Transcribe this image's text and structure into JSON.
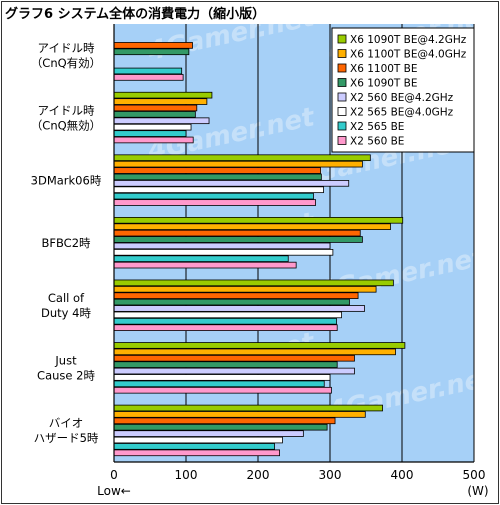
{
  "chart_data": {
    "type": "bar",
    "orientation": "horizontal",
    "title": "グラフ6 システム全体の消費電力（縮小版）",
    "unit": "(W)",
    "x_note": "Low←",
    "xlim": [
      0,
      500
    ],
    "x_ticks": [
      "0",
      "100",
      "200",
      "300",
      "400",
      "500"
    ],
    "grid": true,
    "legend_position": "top-right",
    "watermark": "4Gamer.net",
    "categories": [
      [
        "アイドル時",
        "（CnQ有効）"
      ],
      [
        "アイドル時",
        "（CnQ無効）"
      ],
      [
        "3DMark06時"
      ],
      [
        "BFBC2時"
      ],
      [
        "Call of",
        "Duty 4時"
      ],
      [
        "Just",
        "Cause 2時"
      ],
      [
        "バイオ",
        "ハザード5時"
      ]
    ],
    "series": [
      {
        "name": "X6 1090T BE@4.2GHz",
        "color": "#99cc00",
        "values": [
          0,
          136,
          356,
          401,
          388,
          404,
          373
        ]
      },
      {
        "name": "X6 1100T BE@4.0GHz",
        "color": "#ffb000",
        "values": [
          0,
          129,
          345,
          384,
          364,
          391,
          349
        ]
      },
      {
        "name": "X6 1100T BE",
        "color": "#ff6600",
        "values": [
          109,
          115,
          287,
          342,
          339,
          334,
          307
        ]
      },
      {
        "name": "X6 1090T BE",
        "color": "#339966",
        "values": [
          104,
          113,
          288,
          345,
          327,
          310,
          296
        ]
      },
      {
        "name": "X2 560 BE@4.2GHz",
        "color": "#ccccff",
        "values": [
          0,
          132,
          326,
          300,
          348,
          334,
          263
        ]
      },
      {
        "name": "X2 565 BE@4.0GHz",
        "color": "#ffffff",
        "values": [
          0,
          107,
          291,
          304,
          316,
          300,
          234
        ]
      },
      {
        "name": "X2 565 BE",
        "color": "#33cccc",
        "values": [
          94,
          100,
          277,
          242,
          309,
          292,
          223
        ]
      },
      {
        "name": "X2 560 BE",
        "color": "#ff99cc",
        "values": [
          96,
          110,
          280,
          253,
          310,
          302,
          230
        ]
      }
    ]
  }
}
